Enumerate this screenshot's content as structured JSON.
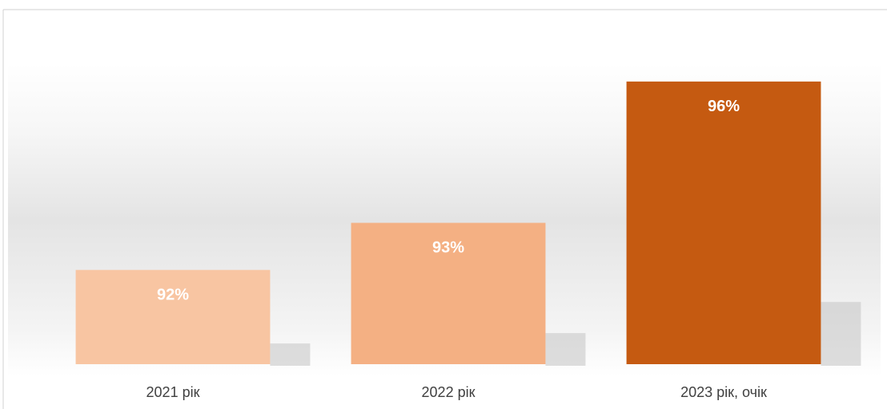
{
  "chart_data": {
    "type": "bar",
    "categories": [
      "2021 рік",
      "2022 рік",
      "2023 рік, очік"
    ],
    "values": [
      92,
      93,
      96
    ],
    "value_labels": [
      "92%",
      "93%",
      "96%"
    ],
    "colors": [
      "#f8c5a2",
      "#f4b083",
      "#c55a11"
    ],
    "ylim": [
      90,
      97
    ]
  }
}
